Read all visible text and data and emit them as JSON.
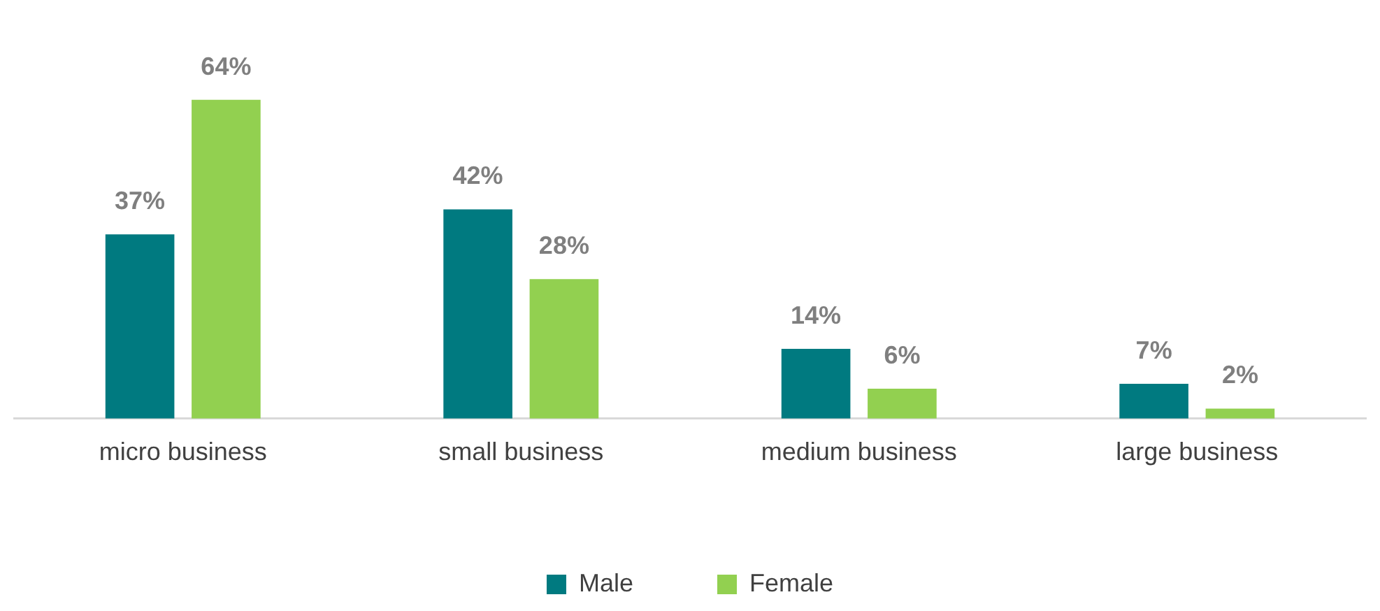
{
  "chart_data": {
    "type": "bar",
    "categories": [
      "micro business",
      "small business",
      "medium business",
      "large business"
    ],
    "series": [
      {
        "name": "Male",
        "color": "#007a80",
        "values": [
          37,
          42,
          14,
          7
        ],
        "value_labels": [
          "37%",
          "42%",
          "14%",
          "7%"
        ]
      },
      {
        "name": "Female",
        "color": "#92d050",
        "values": [
          64,
          28,
          6,
          2
        ],
        "value_labels": [
          "64%",
          "28%",
          "6%",
          "2%"
        ]
      }
    ],
    "legend": "bottom",
    "grid": false
  }
}
